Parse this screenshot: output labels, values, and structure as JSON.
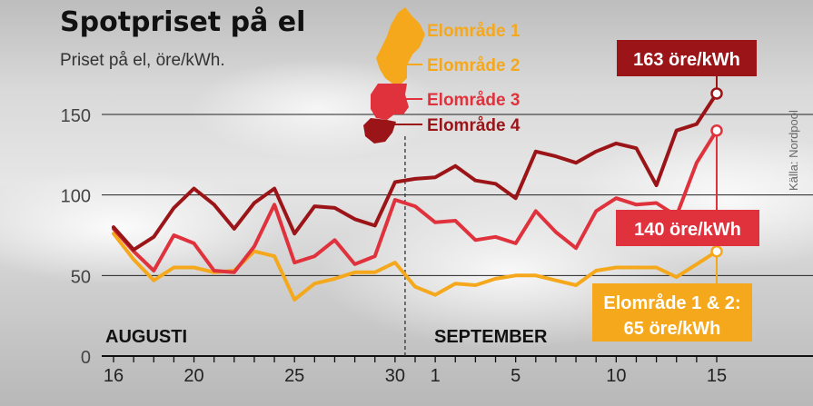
{
  "title": "Spotpriset på el",
  "subtitle": "Priset på el, öre/kWh.",
  "source": "Källa: Nordpool",
  "colors": {
    "elomrade12": "#f5a81c",
    "elomrade3": "#e0323c",
    "elomrade4": "#9b1418",
    "gridline": "#222222"
  },
  "legend": [
    {
      "label": "Elområde 1",
      "color": "#f5a81c"
    },
    {
      "label": "Elområde 2",
      "color": "#f5a81c"
    },
    {
      "label": "Elområde 3",
      "color": "#e0323c"
    },
    {
      "label": "Elområde 4",
      "color": "#9b1418"
    }
  ],
  "callouts": {
    "elomrade4": "163 öre/kWh",
    "elomrade3": "140 öre/kWh",
    "elomrade12_line1": "Elområde 1 & 2:",
    "elomrade12_line2": "65 öre/kWh"
  },
  "chart_data": {
    "type": "line",
    "title": "Spotpriset på el",
    "subtitle": "Priset på el, öre/kWh.",
    "ylim": [
      0,
      150
    ],
    "yticks": [
      0,
      50,
      100,
      150
    ],
    "grid": true,
    "month_labels": [
      "AUGUSTI",
      "SEPTEMBER"
    ],
    "x": [
      "16 aug",
      "17 aug",
      "18 aug",
      "19 aug",
      "20 aug",
      "21 aug",
      "22 aug",
      "23 aug",
      "24 aug",
      "25 aug",
      "26 aug",
      "27 aug",
      "28 aug",
      "29 aug",
      "30 aug",
      "31 aug",
      "1 sep",
      "2 sep",
      "3 sep",
      "4 sep",
      "5 sep",
      "6 sep",
      "7 sep",
      "8 sep",
      "9 sep",
      "10 sep",
      "11 sep",
      "12 sep",
      "13 sep",
      "14 sep",
      "15 sep"
    ],
    "xtick_labels": [
      "16",
      "20",
      "25",
      "30",
      "1",
      "5",
      "10",
      "15"
    ],
    "xtick_index": [
      0,
      4,
      9,
      14,
      16,
      20,
      25,
      30
    ],
    "series": [
      {
        "name": "Elområde 4",
        "color": "#9b1418",
        "values": [
          80,
          66,
          74,
          92,
          104,
          94,
          79,
          95,
          104,
          76,
          93,
          92,
          85,
          81,
          108,
          110,
          111,
          118,
          109,
          107,
          98,
          127,
          124,
          120,
          127,
          132,
          129,
          106,
          140,
          144,
          163
        ]
      },
      {
        "name": "Elområde 3",
        "color": "#e0323c",
        "values": [
          79,
          65,
          53,
          75,
          70,
          53,
          52,
          68,
          94,
          58,
          62,
          72,
          57,
          62,
          97,
          93,
          83,
          84,
          72,
          74,
          70,
          90,
          77,
          67,
          90,
          98,
          94,
          95,
          87,
          120,
          140
        ]
      },
      {
        "name": "Elområde 1 & 2",
        "color": "#f5a81c",
        "values": [
          76,
          60,
          47,
          55,
          55,
          52,
          53,
          65,
          62,
          35,
          45,
          48,
          52,
          52,
          58,
          43,
          38,
          45,
          44,
          48,
          50,
          50,
          47,
          44,
          53,
          55,
          55,
          55,
          49,
          57,
          65
        ]
      }
    ]
  }
}
